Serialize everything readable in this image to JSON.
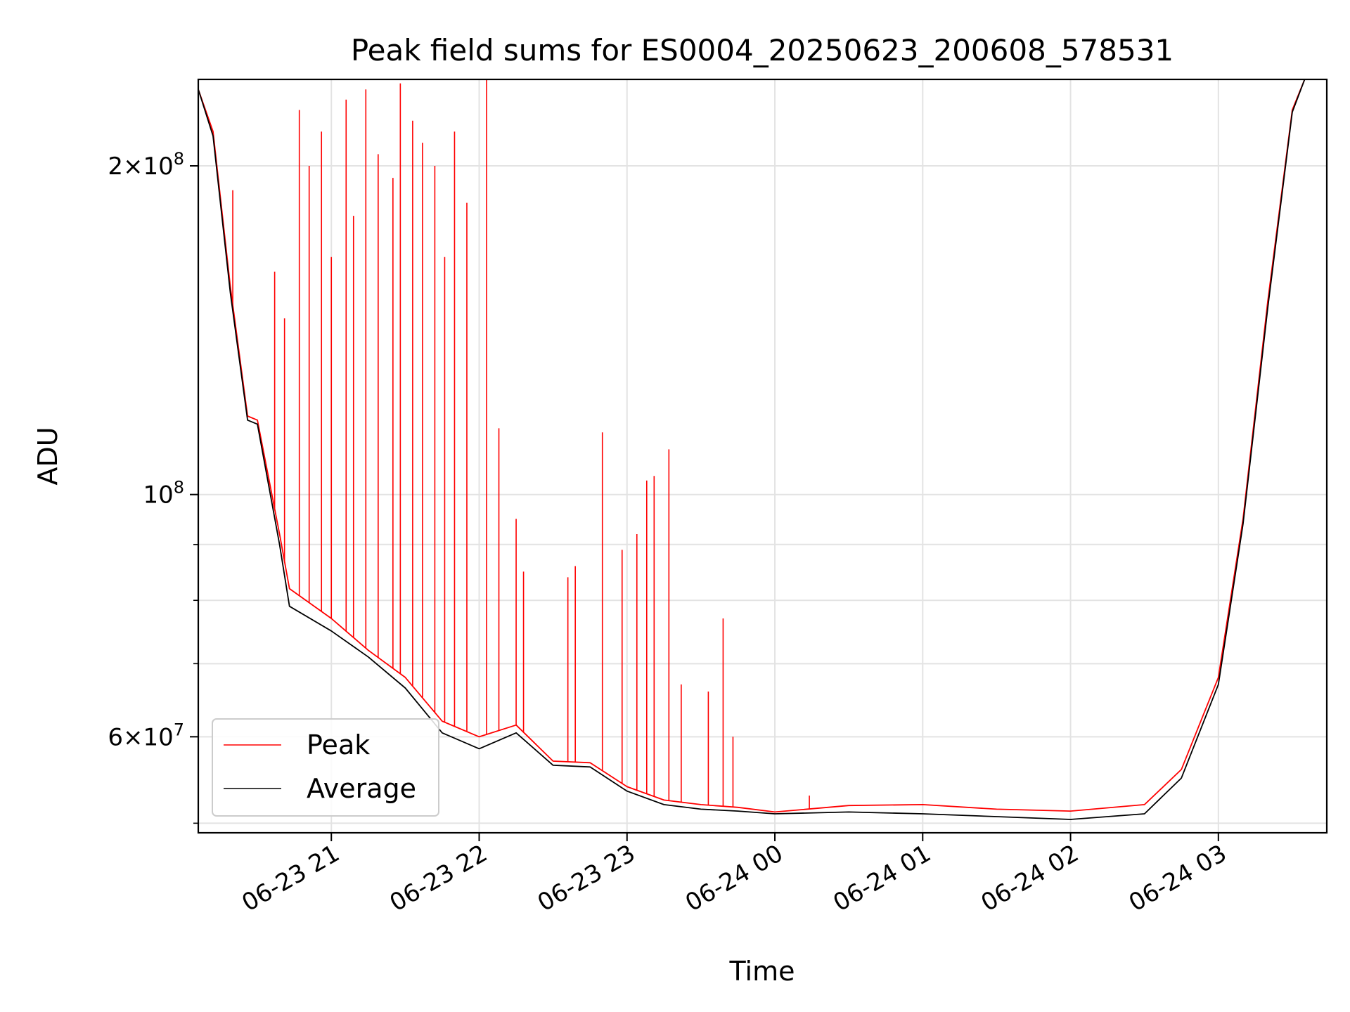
{
  "chart_data": {
    "type": "line",
    "title": "Peak field sums for ES0004_20250623_200608_578531",
    "xlabel": "Time",
    "ylabel": "ADU",
    "yscale": "log",
    "ylim": [
      49000000,
      240000000
    ],
    "xlim": [
      "2025-06-23T20:06",
      "2025-06-24T03:44"
    ],
    "grid": true,
    "legend_position": "lower-left",
    "x_ticks": [
      {
        "t": "2025-06-23T21:00",
        "label": "06-23 21"
      },
      {
        "t": "2025-06-23T22:00",
        "label": "06-23 22"
      },
      {
        "t": "2025-06-23T23:00",
        "label": "06-23 23"
      },
      {
        "t": "2025-06-24T00:00",
        "label": "06-24 00"
      },
      {
        "t": "2025-06-24T01:00",
        "label": "06-24 01"
      },
      {
        "t": "2025-06-24T02:00",
        "label": "06-24 02"
      },
      {
        "t": "2025-06-24T03:00",
        "label": "06-24 03"
      }
    ],
    "y_major_ticks": [
      {
        "value": 200000000,
        "mant": "2",
        "exp": "8"
      },
      {
        "value": 100000000,
        "mant": "",
        "exp": "8"
      },
      {
        "value": 60000000,
        "mant": "6",
        "exp": "7"
      }
    ],
    "y_minor_ticks": [
      50000000,
      70000000,
      80000000,
      90000000
    ],
    "series": [
      {
        "name": "Peak",
        "color": "#ff0000",
        "baseline": [
          [
            "2025-06-23T20:06",
            235000000
          ],
          [
            "2025-06-23T20:12",
            215000000
          ],
          [
            "2025-06-23T20:19",
            155000000
          ],
          [
            "2025-06-23T20:26",
            118000000
          ],
          [
            "2025-06-23T20:30",
            117000000
          ],
          [
            "2025-06-23T20:39",
            92000000
          ],
          [
            "2025-06-23T20:43",
            82000000
          ],
          [
            "2025-06-23T21:00",
            77000000
          ],
          [
            "2025-06-23T21:15",
            72000000
          ],
          [
            "2025-06-23T21:30",
            68000000
          ],
          [
            "2025-06-23T21:45",
            62000000
          ],
          [
            "2025-06-23T22:00",
            60000000
          ],
          [
            "2025-06-23T22:15",
            61500000
          ],
          [
            "2025-06-23T22:30",
            57000000
          ],
          [
            "2025-06-23T22:45",
            56800000
          ],
          [
            "2025-06-23T23:00",
            54000000
          ],
          [
            "2025-06-23T23:15",
            52500000
          ],
          [
            "2025-06-23T23:30",
            52000000
          ],
          [
            "2025-06-23T23:45",
            51700000
          ],
          [
            "2025-06-24T00:00",
            51200000
          ],
          [
            "2025-06-24T00:30",
            51900000
          ],
          [
            "2025-06-24T01:00",
            52000000
          ],
          [
            "2025-06-24T01:30",
            51500000
          ],
          [
            "2025-06-24T02:00",
            51300000
          ],
          [
            "2025-06-24T02:30",
            52000000
          ],
          [
            "2025-06-24T02:45",
            56000000
          ],
          [
            "2025-06-24T03:00",
            68000000
          ],
          [
            "2025-06-24T03:10",
            95000000
          ],
          [
            "2025-06-24T03:20",
            150000000
          ],
          [
            "2025-06-24T03:30",
            225000000
          ],
          [
            "2025-06-24T03:35",
            240000000
          ],
          [
            "2025-06-24T03:44",
            240000000
          ]
        ],
        "spikes": [
          [
            "2025-06-23T20:20",
            190000000
          ],
          [
            "2025-06-23T20:37",
            160000000
          ],
          [
            "2025-06-23T20:41",
            145000000
          ],
          [
            "2025-06-23T20:47",
            225000000
          ],
          [
            "2025-06-23T20:51",
            200000000
          ],
          [
            "2025-06-23T20:56",
            215000000
          ],
          [
            "2025-06-23T21:00",
            165000000
          ],
          [
            "2025-06-23T21:06",
            230000000
          ],
          [
            "2025-06-23T21:09",
            180000000
          ],
          [
            "2025-06-23T21:14",
            235000000
          ],
          [
            "2025-06-23T21:19",
            205000000
          ],
          [
            "2025-06-23T21:25",
            195000000
          ],
          [
            "2025-06-23T21:28",
            238000000
          ],
          [
            "2025-06-23T21:33",
            220000000
          ],
          [
            "2025-06-23T21:37",
            210000000
          ],
          [
            "2025-06-23T21:42",
            200000000
          ],
          [
            "2025-06-23T21:46",
            165000000
          ],
          [
            "2025-06-23T21:50",
            215000000
          ],
          [
            "2025-06-23T21:55",
            185000000
          ],
          [
            "2025-06-23T22:03",
            240000000
          ],
          [
            "2025-06-23T22:08",
            115000000
          ],
          [
            "2025-06-23T22:15",
            95000000
          ],
          [
            "2025-06-23T22:18",
            85000000
          ],
          [
            "2025-06-23T22:36",
            84000000
          ],
          [
            "2025-06-23T22:39",
            86000000
          ],
          [
            "2025-06-23T22:50",
            114000000
          ],
          [
            "2025-06-23T22:58",
            89000000
          ],
          [
            "2025-06-23T23:04",
            92000000
          ],
          [
            "2025-06-23T23:08",
            103000000
          ],
          [
            "2025-06-23T23:11",
            104000000
          ],
          [
            "2025-06-23T23:17",
            110000000
          ],
          [
            "2025-06-23T23:22",
            67000000
          ],
          [
            "2025-06-23T23:33",
            66000000
          ],
          [
            "2025-06-23T23:39",
            77000000
          ],
          [
            "2025-06-23T23:43",
            60000000
          ],
          [
            "2025-06-24T00:14",
            53000000
          ]
        ]
      },
      {
        "name": "Average",
        "color": "#000000",
        "baseline": [
          [
            "2025-06-23T20:06",
            235000000
          ],
          [
            "2025-06-23T20:12",
            213000000
          ],
          [
            "2025-06-23T20:19",
            153000000
          ],
          [
            "2025-06-23T20:26",
            117000000
          ],
          [
            "2025-06-23T20:30",
            116000000
          ],
          [
            "2025-06-23T20:39",
            90000000
          ],
          [
            "2025-06-23T20:43",
            79000000
          ],
          [
            "2025-06-23T21:00",
            75000000
          ],
          [
            "2025-06-23T21:15",
            71000000
          ],
          [
            "2025-06-23T21:30",
            66500000
          ],
          [
            "2025-06-23T21:45",
            60500000
          ],
          [
            "2025-06-23T22:00",
            58500000
          ],
          [
            "2025-06-23T22:15",
            60500000
          ],
          [
            "2025-06-23T22:30",
            56500000
          ],
          [
            "2025-06-23T22:45",
            56300000
          ],
          [
            "2025-06-23T23:00",
            53500000
          ],
          [
            "2025-06-23T23:15",
            52000000
          ],
          [
            "2025-06-23T23:30",
            51500000
          ],
          [
            "2025-06-23T23:45",
            51300000
          ],
          [
            "2025-06-24T00:00",
            51000000
          ],
          [
            "2025-06-24T00:30",
            51200000
          ],
          [
            "2025-06-24T01:00",
            51000000
          ],
          [
            "2025-06-24T01:30",
            50700000
          ],
          [
            "2025-06-24T02:00",
            50400000
          ],
          [
            "2025-06-24T02:30",
            51000000
          ],
          [
            "2025-06-24T02:45",
            55000000
          ],
          [
            "2025-06-24T03:00",
            67000000
          ],
          [
            "2025-06-24T03:10",
            94000000
          ],
          [
            "2025-06-24T03:20",
            148000000
          ],
          [
            "2025-06-24T03:30",
            224000000
          ],
          [
            "2025-06-24T03:35",
            240000000
          ],
          [
            "2025-06-24T03:44",
            240000000
          ]
        ]
      }
    ]
  }
}
